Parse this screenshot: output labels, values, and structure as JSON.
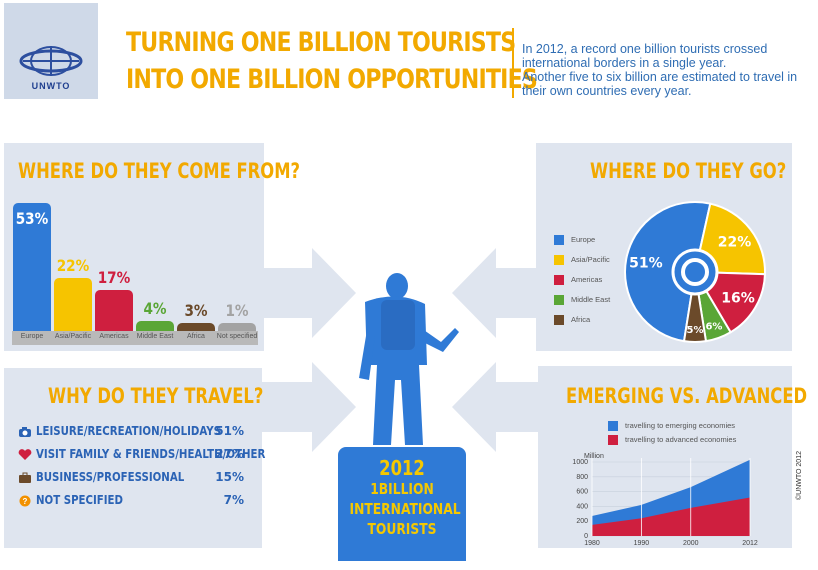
{
  "logo": {
    "text": "UNWTO"
  },
  "headline": {
    "line1": "TURNING ONE BILLION TOURISTS",
    "line2": "INTO ONE BILLION OPPORTUNITIES"
  },
  "intro": {
    "line1": "In 2012, a record one billion tourists crossed international borders in a single year.",
    "line2": "Another five to six billion are estimated to travel in their own countries every year."
  },
  "come_from": {
    "title": "WHERE DO THEY COME FROM?",
    "bars": [
      {
        "label": "Europe",
        "pct": "53%",
        "value": 53,
        "color": "#2f7ad6"
      },
      {
        "label": "Asia/Pacific",
        "pct": "22%",
        "value": 22,
        "color": "#f6c400"
      },
      {
        "label": "Americas",
        "pct": "17%",
        "value": 17,
        "color": "#cf1f3f"
      },
      {
        "label": "Middle East",
        "pct": "4%",
        "value": 4,
        "color": "#5aa636"
      },
      {
        "label": "Africa",
        "pct": "3%",
        "value": 3,
        "color": "#6b4a2a"
      },
      {
        "label": "Not specified",
        "pct": "1%",
        "value": 1,
        "color": "#a3a3a3"
      }
    ]
  },
  "go": {
    "title": "WHERE DO THEY GO?",
    "legend": [
      {
        "label": "Europe",
        "color": "#2f7ad6"
      },
      {
        "label": "Asia/Pacific",
        "color": "#f6c400"
      },
      {
        "label": "Americas",
        "color": "#cf1f3f"
      },
      {
        "label": "Middle East",
        "color": "#5aa636"
      },
      {
        "label": "Africa",
        "color": "#6b4a2a"
      }
    ],
    "slices": [
      {
        "pct": "51%",
        "value": 51,
        "color": "#2f7ad6"
      },
      {
        "pct": "22%",
        "value": 22,
        "color": "#f6c400"
      },
      {
        "pct": "16%",
        "value": 16,
        "color": "#cf1f3f"
      },
      {
        "pct": "6%",
        "value": 6,
        "color": "#5aa636"
      },
      {
        "pct": "5%",
        "value": 5,
        "color": "#6b4a2a"
      }
    ]
  },
  "why": {
    "title": "WHY DO THEY TRAVEL?",
    "rows": [
      {
        "icon": "camera-icon",
        "label": "LEISURE/RECREATION/HOLIDAYS",
        "pct": "51%"
      },
      {
        "icon": "heart-icon",
        "label": "VISIT FAMILY & FRIENDS/HEALTH/OTHER",
        "pct": "27%"
      },
      {
        "icon": "briefcase-icon",
        "label": "BUSINESS/PROFESSIONAL",
        "pct": "15%"
      },
      {
        "icon": "question-icon",
        "label": "NOT SPECIFIED",
        "pct": "7%"
      }
    ]
  },
  "emerging": {
    "title": "EMERGING VS. ADVANCED",
    "legend_emerging": "travelling to emerging economies",
    "legend_advanced": "travelling to advanced economies",
    "y_unit": "Million",
    "y_ticks": [
      "1000",
      "800",
      "600",
      "400",
      "200",
      "0"
    ],
    "x_ticks": [
      "1980",
      "1990",
      "2000",
      "2012"
    ]
  },
  "center": {
    "line1": "2012",
    "line2": "1BILLION",
    "line3": "INTERNATIONAL",
    "line4": "TOURISTS"
  },
  "copyright": "©UNWTO 2012",
  "colors": {
    "accent": "#f2a900",
    "blue": "#2f7ad6",
    "panel": "#dfe5ef",
    "text_blue": "#2b63b5"
  },
  "chart_data": [
    {
      "type": "bar",
      "title": "WHERE DO THEY COME FROM?",
      "categories": [
        "Europe",
        "Asia/Pacific",
        "Americas",
        "Middle East",
        "Africa",
        "Not specified"
      ],
      "values": [
        53,
        22,
        17,
        4,
        3,
        1
      ],
      "ylim": [
        0,
        55
      ]
    },
    {
      "type": "pie",
      "title": "WHERE DO THEY GO?",
      "categories": [
        "Europe",
        "Asia/Pacific",
        "Americas",
        "Middle East",
        "Africa"
      ],
      "values": [
        51,
        22,
        16,
        6,
        5
      ]
    },
    {
      "type": "area",
      "title": "EMERGING VS. ADVANCED",
      "ylabel": "Million",
      "x": [
        1980,
        1990,
        2000,
        2012
      ],
      "ylim": [
        0,
        1000
      ],
      "series": [
        {
          "name": "travelling to advanced economies",
          "values": [
            150,
            240,
            380,
            520
          ]
        },
        {
          "name": "travelling to emerging economies",
          "values": [
            270,
            420,
            660,
            1030
          ]
        }
      ]
    }
  ]
}
